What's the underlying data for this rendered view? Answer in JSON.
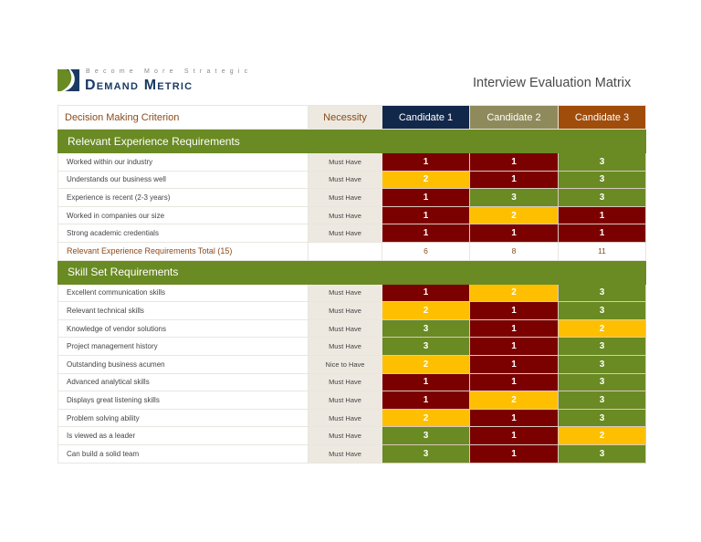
{
  "logo": {
    "tagline": "Become More Strategic",
    "brand": "Demand Metric"
  },
  "title": "Interview Evaluation Matrix",
  "colors": {
    "score_1": "#7b0000",
    "score_2": "#fdbf00",
    "score_3": "#6a8a23",
    "candidate_1": "#12284a",
    "candidate_2": "#8f8a5c",
    "candidate_3": "#a04c0b",
    "section": "#6a8a23"
  },
  "header": {
    "criterion": "Decision Making Criterion",
    "necessity": "Necessity",
    "candidates": [
      "Candidate 1",
      "Candidate 2",
      "Candidate 3"
    ]
  },
  "sections": [
    {
      "title": "Relevant Experience Requirements",
      "rows": [
        {
          "criterion": "Worked within our industry",
          "necessity": "Must Have",
          "scores": [
            1,
            1,
            3
          ]
        },
        {
          "criterion": "Understands our business well",
          "necessity": "Must Have",
          "scores": [
            2,
            1,
            3
          ]
        },
        {
          "criterion": "Experience is recent (2-3 years)",
          "necessity": "Must Have",
          "scores": [
            1,
            3,
            3
          ]
        },
        {
          "criterion": "Worked in companies our size",
          "necessity": "Must Have",
          "scores": [
            1,
            2,
            1
          ]
        },
        {
          "criterion": "Strong academic credentials",
          "necessity": "Must Have",
          "scores": [
            1,
            1,
            1
          ]
        }
      ],
      "total": {
        "label": "Relevant Experience Requirements Total (15)",
        "values": [
          6,
          8,
          11
        ]
      }
    },
    {
      "title": "Skill Set Requirements",
      "rows": [
        {
          "criterion": "Excellent communication skills",
          "necessity": "Must Have",
          "scores": [
            1,
            2,
            3
          ]
        },
        {
          "criterion": "Relevant technical skills",
          "necessity": "Must Have",
          "scores": [
            2,
            1,
            3
          ]
        },
        {
          "criterion": "Knowledge of vendor solutions",
          "necessity": "Must Have",
          "scores": [
            3,
            1,
            2
          ]
        },
        {
          "criterion": "Project management history",
          "necessity": "Must Have",
          "scores": [
            3,
            1,
            3
          ]
        },
        {
          "criterion": "Outstanding business acumen",
          "necessity": "Nice to Have",
          "scores": [
            2,
            1,
            3
          ]
        },
        {
          "criterion": "Advanced analytical skills",
          "necessity": "Must Have",
          "scores": [
            1,
            1,
            3
          ]
        },
        {
          "criterion": "Displays great listening skills",
          "necessity": "Must Have",
          "scores": [
            1,
            2,
            3
          ]
        },
        {
          "criterion": "Problem solving ability",
          "necessity": "Must Have",
          "scores": [
            2,
            1,
            3
          ]
        },
        {
          "criterion": "Is viewed as a leader",
          "necessity": "Must Have",
          "scores": [
            3,
            1,
            2
          ]
        },
        {
          "criterion": "Can build a solid team",
          "necessity": "Must Have",
          "scores": [
            3,
            1,
            3
          ]
        }
      ]
    }
  ]
}
